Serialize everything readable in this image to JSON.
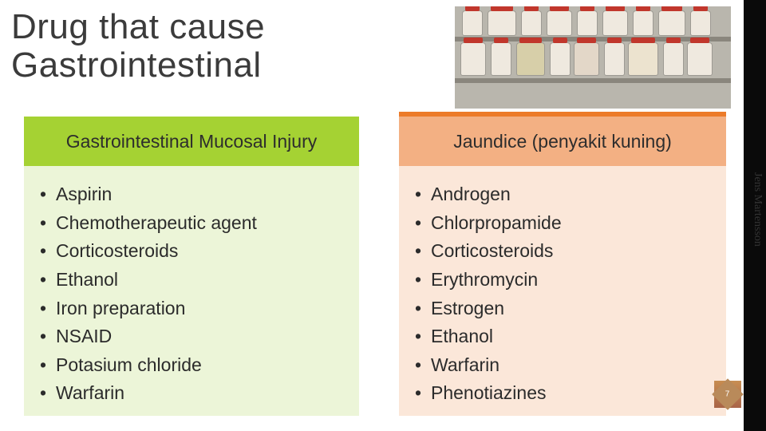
{
  "title": "Drug that cause\nGastrointestinal",
  "author": "Jens Martensson",
  "page_number": "7",
  "colors": {
    "left_header_bg": "#a5d233",
    "left_body_bg": "#ecf5d8",
    "right_header_bg": "#f3b083",
    "right_header_stripe": "#ec7b29",
    "right_body_bg": "#fbe7d9",
    "sidebar_bg": "#0a0a0a",
    "title_color": "#3b3b3b",
    "text_color": "#2b2b2b"
  },
  "left_card": {
    "header": "Gastrointestinal Mucosal Injury",
    "items": [
      "Aspirin",
      "Chemotherapeutic agent",
      "Corticosteroids",
      "Ethanol",
      "Iron preparation",
      "NSAID",
      "Potasium chloride",
      "Warfarin"
    ]
  },
  "right_card": {
    "header": "Jaundice (penyakit kuning)",
    "items": [
      "Androgen",
      "Chlorpropamide",
      "Corticosteroids",
      "Erythromycin",
      "Estrogen",
      "Ethanol",
      "Warfarin",
      "Phenotiazines"
    ]
  }
}
